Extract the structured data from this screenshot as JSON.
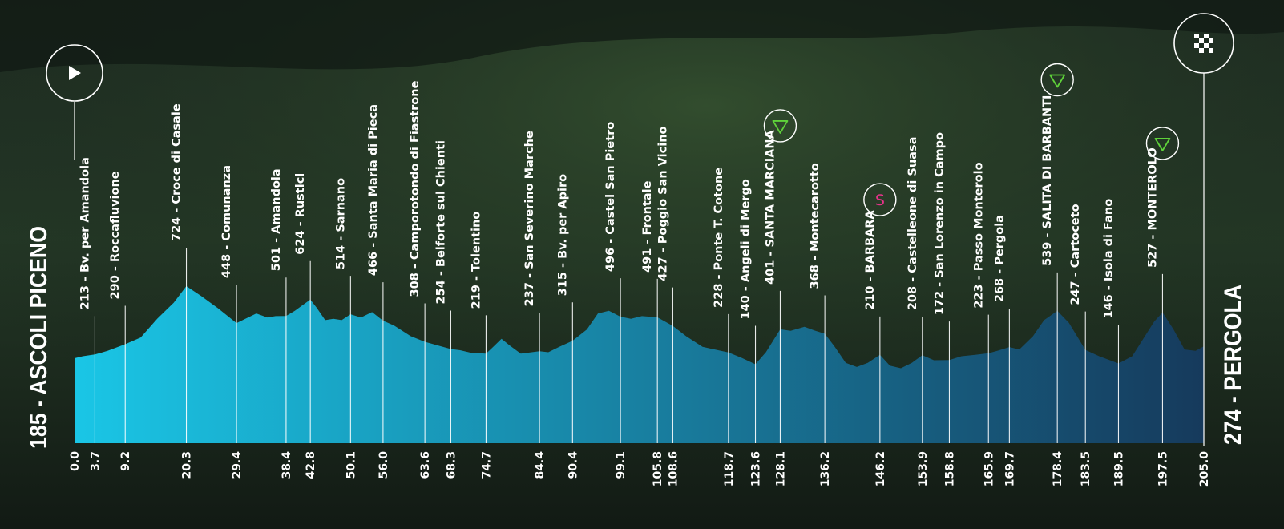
{
  "start_label": "185 - ASCOLI PICENO",
  "finish_label": "274 - PERGOLA",
  "icons": {
    "start": "play-icon",
    "finish": "checkered-flag-icon",
    "kom": "kom-triangle-icon",
    "sprint": "sprint-s-icon",
    "sprint_letter": "S"
  },
  "colors": {
    "profile_start": "#1ac6e6",
    "profile_end": "#163a5c",
    "kom_green": "#5fd33a",
    "sprint_pink": "#e6338a"
  },
  "chart_data": {
    "type": "area",
    "title": "",
    "xlabel": "",
    "ylabel": "",
    "unit_x": "km",
    "xlim": [
      0,
      205
    ],
    "ylim": [
      0,
      900
    ],
    "profile": [
      [
        0.0,
        185
      ],
      [
        1.5,
        200
      ],
      [
        3.7,
        213
      ],
      [
        6,
        240
      ],
      [
        9.2,
        290
      ],
      [
        12,
        340
      ],
      [
        15,
        480
      ],
      [
        18,
        600
      ],
      [
        20.3,
        724
      ],
      [
        23,
        650
      ],
      [
        26,
        560
      ],
      [
        29.4,
        448
      ],
      [
        31,
        480
      ],
      [
        33,
        520
      ],
      [
        35,
        490
      ],
      [
        36.5,
        500
      ],
      [
        38.4,
        501
      ],
      [
        40,
        540
      ],
      [
        42.8,
        624
      ],
      [
        44,
        560
      ],
      [
        45.5,
        470
      ],
      [
        47,
        480
      ],
      [
        48.5,
        470
      ],
      [
        50.1,
        514
      ],
      [
        52,
        490
      ],
      [
        54,
        530
      ],
      [
        56.0,
        466
      ],
      [
        58,
        430
      ],
      [
        61,
        350
      ],
      [
        63.6,
        308
      ],
      [
        66,
        280
      ],
      [
        68.3,
        254
      ],
      [
        70,
        245
      ],
      [
        72,
        225
      ],
      [
        74.7,
        219
      ],
      [
        76,
        270
      ],
      [
        77.5,
        330
      ],
      [
        79,
        280
      ],
      [
        81,
        220
      ],
      [
        84.4,
        237
      ],
      [
        86,
        230
      ],
      [
        88,
        270
      ],
      [
        90.4,
        315
      ],
      [
        93,
        400
      ],
      [
        95,
        520
      ],
      [
        97,
        540
      ],
      [
        99.1,
        496
      ],
      [
        101,
        480
      ],
      [
        103,
        500
      ],
      [
        105.8,
        491
      ],
      [
        108.6,
        427
      ],
      [
        111,
        350
      ],
      [
        114,
        270
      ],
      [
        118.7,
        228
      ],
      [
        121,
        190
      ],
      [
        123.6,
        140
      ],
      [
        125.5,
        230
      ],
      [
        128.1,
        401
      ],
      [
        130,
        390
      ],
      [
        132.5,
        420
      ],
      [
        134.5,
        390
      ],
      [
        136.2,
        368
      ],
      [
        138,
        270
      ],
      [
        140,
        150
      ],
      [
        142,
        120
      ],
      [
        144,
        150
      ],
      [
        146.2,
        210
      ],
      [
        148,
        130
      ],
      [
        150,
        110
      ],
      [
        152,
        150
      ],
      [
        153.9,
        208
      ],
      [
        156,
        170
      ],
      [
        158.8,
        172
      ],
      [
        161,
        200
      ],
      [
        163.5,
        210
      ],
      [
        165.9,
        223
      ],
      [
        167.5,
        240
      ],
      [
        169.7,
        268
      ],
      [
        171.5,
        250
      ],
      [
        174,
        350
      ],
      [
        176,
        470
      ],
      [
        178.4,
        539
      ],
      [
        180.5,
        450
      ],
      [
        183.5,
        247
      ],
      [
        186,
        200
      ],
      [
        189.5,
        146
      ],
      [
        192,
        200
      ],
      [
        194,
        330
      ],
      [
        196,
        460
      ],
      [
        197.5,
        527
      ],
      [
        199.5,
        400
      ],
      [
        201.5,
        250
      ],
      [
        203.5,
        240
      ],
      [
        205.0,
        274
      ]
    ],
    "waypoints": [
      {
        "km": 3.7,
        "label": "213 - Bv. per Amandola"
      },
      {
        "km": 9.2,
        "label": "290 - Roccafluvione"
      },
      {
        "km": 20.3,
        "label": "724 - Croce di Casale"
      },
      {
        "km": 29.4,
        "label": "448 - Comunanza"
      },
      {
        "km": 38.4,
        "label": "501 - Amandola"
      },
      {
        "km": 42.8,
        "label": "624 - Rustici"
      },
      {
        "km": 50.1,
        "label": "514 - Sarnano"
      },
      {
        "km": 56.0,
        "label": "466 - Santa Maria di Pieca"
      },
      {
        "km": 63.6,
        "label": "308 - Camporotondo di Fiastrone"
      },
      {
        "km": 68.3,
        "label": "254 - Belforte sul Chienti"
      },
      {
        "km": 74.7,
        "label": "219 - Tolentino"
      },
      {
        "km": 84.4,
        "label": "237 - San Severino Marche"
      },
      {
        "km": 90.4,
        "label": "315 - Bv. per Apiro"
      },
      {
        "km": 99.1,
        "label": "496 - Castel San Pietro"
      },
      {
        "km": 105.8,
        "label": "491 - Frontale"
      },
      {
        "km": 108.6,
        "label": "427 - Poggio San Vicino"
      },
      {
        "km": 118.7,
        "label": "228 - Ponte T. Cotone"
      },
      {
        "km": 123.6,
        "label": "140 - Angeli di Mergo"
      },
      {
        "km": 128.1,
        "label": "401 - SANTA MARCIANA",
        "marker": "kom"
      },
      {
        "km": 136.2,
        "label": "368 - Montecarotto"
      },
      {
        "km": 146.2,
        "label": "210 - BARBARA",
        "marker": "sprint"
      },
      {
        "km": 153.9,
        "label": "208 - Castelleone di Suasa"
      },
      {
        "km": 158.8,
        "label": "172 - San Lorenzo in Campo"
      },
      {
        "km": 165.9,
        "label": "223 - Passo Monterolo"
      },
      {
        "km": 169.7,
        "label": "268 - Pergola"
      },
      {
        "km": 178.4,
        "label": "539 - SALITA DI BARBANTI",
        "marker": "kom"
      },
      {
        "km": 183.5,
        "label": "247 - Cartoceto"
      },
      {
        "km": 189.5,
        "label": "146 - Isola di Fano"
      },
      {
        "km": 197.5,
        "label": "527 - MONTEROLO",
        "marker": "kom"
      }
    ],
    "x_ticks": [
      "0.0",
      "3.7",
      "9.2",
      "20.3",
      "29.4",
      "38.4",
      "42.8",
      "50.1",
      "56.0",
      "63.6",
      "68.3",
      "74.7",
      "84.4",
      "90.4",
      "99.1",
      "105.8",
      "108.6",
      "118.7",
      "123.6",
      "128.1",
      "136.2",
      "146.2",
      "153.9",
      "158.8",
      "165.9",
      "169.7",
      "178.4",
      "183.5",
      "189.5",
      "197.5",
      "205.0"
    ]
  }
}
